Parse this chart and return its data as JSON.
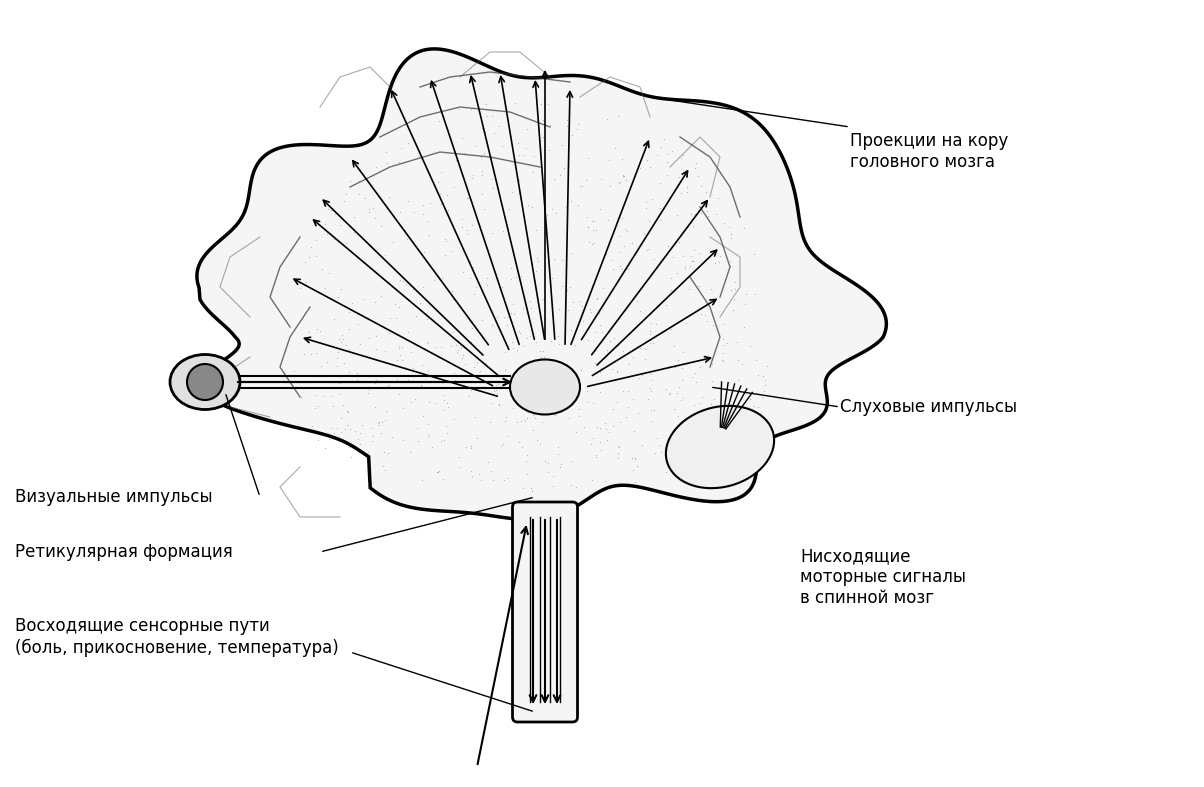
{
  "background_color": "#ffffff",
  "line_color": "#000000",
  "figure_size": [
    12.04,
    7.87
  ],
  "dpi": 100,
  "labels": {
    "top_right": "Проекции на кору\nголовного мозга",
    "mid_right": "Слуховые импульсы",
    "bottom_right": "Нисходящие\nмоторные сигналы\nв спинной мозг",
    "visual": "Визуальные импульсы",
    "reticular": "Ретикулярная формация",
    "ascending": "Восходящие сенсорные пути\n(боль, прикосновение, температура)"
  }
}
